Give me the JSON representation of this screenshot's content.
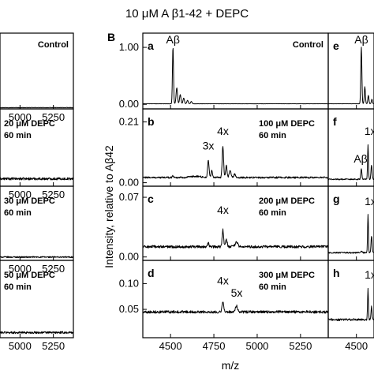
{
  "figure_title": "10 μM A β1-42 + DEPC",
  "panel_B_label": "B",
  "ylabel": "Intensity, relative to Aβ42",
  "xlabel": "m/z",
  "chart_data": [
    {
      "type": "line",
      "panel": "left-1",
      "condition": [
        "Control"
      ],
      "xlim": [
        4850,
        5400
      ],
      "ylim": [
        0,
        1.2
      ],
      "x_ticks": [
        {
          "v": 5000,
          "label": "5000"
        },
        {
          "v": 5250,
          "label": "5250"
        }
      ],
      "y_ticks": [],
      "baseline": 0.02,
      "noise": 0.003,
      "peaks": [],
      "annotations": []
    },
    {
      "type": "line",
      "panel": "left-2",
      "condition": [
        "20 μM DEPC",
        "60 min"
      ],
      "xlim": [
        4850,
        5400
      ],
      "ylim": [
        0,
        0.26
      ],
      "x_ticks": [
        {
          "v": 5000,
          "label": "5000"
        },
        {
          "v": 5250,
          "label": "5250"
        }
      ],
      "y_ticks": [],
      "baseline": 0.025,
      "noise": 0.004,
      "peaks": [],
      "annotations": []
    },
    {
      "type": "line",
      "panel": "left-3",
      "condition": [
        "30 μM DEPC",
        "60 min"
      ],
      "xlim": [
        4850,
        5400
      ],
      "ylim": [
        0,
        0.09
      ],
      "x_ticks": [
        {
          "v": 5000,
          "label": "5000"
        },
        {
          "v": 5250,
          "label": "5250"
        }
      ],
      "y_ticks": [],
      "baseline": 0.004,
      "noise": 0.0008,
      "peaks": [],
      "annotations": []
    },
    {
      "type": "line",
      "panel": "left-4",
      "condition": [
        "50 μM DEPC",
        "60 min"
      ],
      "xlim": [
        4850,
        5400
      ],
      "ylim": [
        0,
        0.15
      ],
      "x_ticks": [
        {
          "v": 5000,
          "label": "5000"
        },
        {
          "v": 5250,
          "label": "5250"
        }
      ],
      "y_ticks": [],
      "baseline": 0.01,
      "noise": 0.002,
      "peaks": [],
      "annotations": []
    },
    {
      "type": "line",
      "panel": "a",
      "condition": [
        "Control"
      ],
      "xlim": [
        4340,
        5410
      ],
      "ylim": [
        -0.08,
        1.25
      ],
      "x_ticks": [
        {
          "v": 4500,
          "label": ""
        },
        {
          "v": 4750,
          "label": ""
        },
        {
          "v": 5000,
          "label": ""
        },
        {
          "v": 5250,
          "label": ""
        }
      ],
      "y_ticks": [
        {
          "v": 0.0,
          "label": "0.00"
        },
        {
          "v": 1.0,
          "label": "1.00"
        }
      ],
      "baseline": 0.01,
      "noise": 0.002,
      "peaks": [
        {
          "x": 4514,
          "y": 1.0,
          "w": 3
        },
        {
          "x": 4536,
          "y": 0.28,
          "w": 4
        },
        {
          "x": 4556,
          "y": 0.16,
          "w": 4
        },
        {
          "x": 4576,
          "y": 0.1,
          "w": 4
        },
        {
          "x": 4598,
          "y": 0.06,
          "w": 4
        },
        {
          "x": 4620,
          "y": 0.04,
          "w": 4
        }
      ],
      "annotations": [
        {
          "text": "Aβ",
          "x": 4514,
          "y": 1.03
        }
      ]
    },
    {
      "type": "line",
      "panel": "b",
      "condition": [
        "100 μM DEPC",
        "60 min"
      ],
      "xlim": [
        4340,
        5410
      ],
      "ylim": [
        -0.012,
        0.255
      ],
      "x_ticks": [
        {
          "v": 4500,
          "label": ""
        },
        {
          "v": 4750,
          "label": ""
        },
        {
          "v": 5000,
          "label": ""
        },
        {
          "v": 5250,
          "label": ""
        }
      ],
      "y_ticks": [
        {
          "v": 0.0,
          "label": "0.00"
        },
        {
          "v": 0.21,
          "label": "0.21"
        }
      ],
      "baseline": 0.018,
      "noise": 0.003,
      "peaks": [
        {
          "x": 4514,
          "y": 0.006,
          "w": 4
        },
        {
          "x": 4650,
          "y": 0.004,
          "w": 30
        },
        {
          "x": 4718,
          "y": 0.06,
          "w": 4
        },
        {
          "x": 4738,
          "y": 0.025,
          "w": 4
        },
        {
          "x": 4802,
          "y": 0.11,
          "w": 4
        },
        {
          "x": 4822,
          "y": 0.04,
          "w": 4
        },
        {
          "x": 4844,
          "y": 0.025,
          "w": 5
        },
        {
          "x": 4870,
          "y": 0.012,
          "w": 5
        }
      ],
      "annotations": [
        {
          "text": "3x",
          "x": 4718,
          "y": 0.106
        },
        {
          "text": "4x",
          "x": 4802,
          "y": 0.157
        }
      ]
    },
    {
      "type": "line",
      "panel": "c",
      "condition": [
        "200 μM DEPC",
        "60 min"
      ],
      "xlim": [
        4340,
        5410
      ],
      "ylim": [
        -0.004,
        0.083
      ],
      "x_ticks": [
        {
          "v": 4500,
          "label": ""
        },
        {
          "v": 4750,
          "label": ""
        },
        {
          "v": 5000,
          "label": ""
        },
        {
          "v": 5250,
          "label": ""
        }
      ],
      "y_ticks": [
        {
          "v": 0.0,
          "label": "0.00"
        },
        {
          "v": 0.07,
          "label": "0.07"
        }
      ],
      "baseline": 0.012,
      "noise": 0.0015,
      "peaks": [
        {
          "x": 4718,
          "y": 0.004,
          "w": 4
        },
        {
          "x": 4802,
          "y": 0.02,
          "w": 4
        },
        {
          "x": 4822,
          "y": 0.008,
          "w": 5
        },
        {
          "x": 4880,
          "y": 0.005,
          "w": 8
        }
      ],
      "annotations": [
        {
          "text": "4x",
          "x": 4802,
          "y": 0.048
        }
      ]
    },
    {
      "type": "line",
      "panel": "d",
      "condition": [
        "300 μM DEPC",
        "60 min"
      ],
      "xlim": [
        4340,
        5410
      ],
      "ylim": [
        -0.005,
        0.145
      ],
      "x_ticks": [
        {
          "v": 4500,
          "label": "4500"
        },
        {
          "v": 4750,
          "label": "4750"
        },
        {
          "v": 5000,
          "label": "5000"
        },
        {
          "v": 5250,
          "label": "5250"
        }
      ],
      "y_ticks": [
        {
          "v": 0.05,
          "label": "0.05"
        },
        {
          "v": 0.1,
          "label": "0.10"
        }
      ],
      "baseline": 0.045,
      "noise": 0.0025,
      "peaks": [
        {
          "x": 4802,
          "y": 0.018,
          "w": 5
        },
        {
          "x": 4880,
          "y": 0.012,
          "w": 6
        }
      ],
      "annotations": [
        {
          "text": "4x",
          "x": 4802,
          "y": 0.094
        },
        {
          "text": "5x",
          "x": 4882,
          "y": 0.07
        }
      ]
    },
    {
      "type": "line",
      "panel": "e",
      "condition": [],
      "xlim": [
        4420,
        4550
      ],
      "ylim": [
        -0.08,
        1.25
      ],
      "x_ticks": [
        {
          "v": 4500,
          "label": ""
        }
      ],
      "y_ticks": [],
      "baseline": 0.01,
      "noise": 0.002,
      "peaks": [
        {
          "x": 4514,
          "y": 1.0,
          "w": 1.5
        },
        {
          "x": 4524,
          "y": 0.3,
          "w": 1.5
        },
        {
          "x": 4534,
          "y": 0.15,
          "w": 1.5
        },
        {
          "x": 4544,
          "y": 0.08,
          "w": 1.5
        }
      ],
      "annotations": [
        {
          "text": "Aβ",
          "x": 4514,
          "y": 1.03
        }
      ]
    },
    {
      "type": "line",
      "panel": "f",
      "condition": [],
      "xlim": [
        4420,
        4550
      ],
      "ylim": [
        -0.012,
        0.255
      ],
      "x_ticks": [
        {
          "v": 4500,
          "label": ""
        }
      ],
      "y_ticks": [],
      "baseline": 0.012,
      "noise": 0.002,
      "peaks": [
        {
          "x": 4514,
          "y": 0.035,
          "w": 1.5
        },
        {
          "x": 4533,
          "y": 0.12,
          "w": 1.2
        },
        {
          "x": 4543,
          "y": 0.05,
          "w": 1.5
        }
      ],
      "annotations": [
        {
          "text": "Aβ",
          "x": 4512,
          "y": 0.062
        },
        {
          "text": "1x",
          "x": 4539,
          "y": 0.157
        }
      ]
    },
    {
      "type": "line",
      "panel": "g",
      "condition": [],
      "xlim": [
        4420,
        4550
      ],
      "ylim": [
        -0.004,
        0.083
      ],
      "x_ticks": [
        {
          "v": 4500,
          "label": ""
        }
      ],
      "y_ticks": [],
      "baseline": 0.005,
      "noise": 0.0008,
      "peaks": [
        {
          "x": 4514,
          "y": 0.002,
          "w": 2
        },
        {
          "x": 4533,
          "y": 0.045,
          "w": 1.2
        },
        {
          "x": 4543,
          "y": 0.02,
          "w": 1.5
        }
      ],
      "annotations": [
        {
          "text": "1x",
          "x": 4540,
          "y": 0.058
        }
      ]
    },
    {
      "type": "line",
      "panel": "h",
      "condition": [],
      "xlim": [
        4420,
        4550
      ],
      "ylim": [
        -0.005,
        0.145
      ],
      "x_ticks": [
        {
          "v": 4500,
          "label": "4500"
        }
      ],
      "y_ticks": [],
      "baseline": 0.03,
      "noise": 0.002,
      "peaks": [
        {
          "x": 4533,
          "y": 0.06,
          "w": 1.2
        },
        {
          "x": 4543,
          "y": 0.025,
          "w": 1.5
        }
      ],
      "annotations": [
        {
          "text": "1x",
          "x": 4540,
          "y": 0.105
        }
      ]
    }
  ]
}
